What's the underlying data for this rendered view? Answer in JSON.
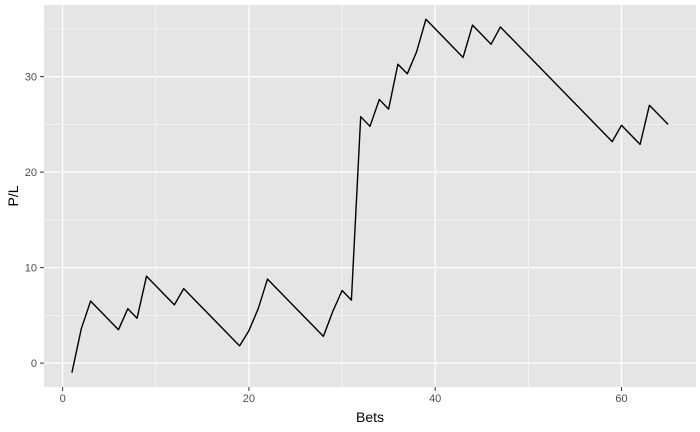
{
  "chart_data": {
    "type": "line",
    "title": "",
    "xlabel": "Bets",
    "ylabel": "P/L",
    "xlim": [
      -2,
      68
    ],
    "ylim": [
      -2.5,
      37.5
    ],
    "x_ticks": [
      0,
      20,
      40,
      60
    ],
    "y_ticks": [
      0,
      10,
      20,
      30
    ],
    "grid": true,
    "legend": "none",
    "colors": {
      "panel": "#e5e5e5",
      "grid": "#ffffff",
      "line": "#000000",
      "tick": "#4d4d4d"
    },
    "series": [
      {
        "x": [
          1,
          2,
          3,
          6,
          7,
          8,
          9,
          12,
          13,
          19,
          20,
          21,
          22,
          28,
          29,
          30,
          31,
          32,
          33,
          34,
          35,
          36,
          37,
          38,
          39,
          43,
          44,
          46,
          47,
          59,
          60,
          62,
          63,
          65
        ],
        "y": [
          -1.0,
          3.6,
          6.5,
          3.5,
          5.7,
          4.7,
          9.1,
          6.1,
          7.8,
          1.8,
          3.4,
          5.7,
          8.8,
          2.8,
          5.4,
          7.6,
          6.6,
          25.8,
          24.8,
          27.6,
          26.6,
          31.3,
          30.3,
          32.6,
          36.0,
          32.0,
          35.4,
          33.4,
          35.2,
          23.2,
          24.9,
          22.9,
          27.0,
          25.0
        ]
      }
    ]
  }
}
